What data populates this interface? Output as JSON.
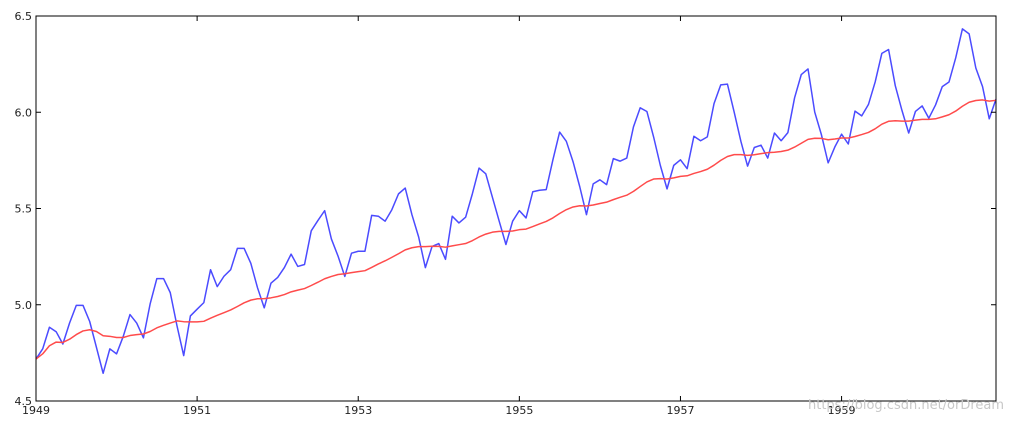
{
  "chart_data": {
    "type": "line",
    "title": "",
    "xlabel": "",
    "ylabel": "",
    "xlim": [
      1949,
      1960.917
    ],
    "ylim": [
      4.5,
      6.5
    ],
    "x_ticks": [
      1949,
      1951,
      1953,
      1955,
      1957,
      1959
    ],
    "y_ticks": [
      "4.5",
      "5.0",
      "5.5",
      "6.0",
      "6.5"
    ],
    "grid": false,
    "legend": "none",
    "x_start": 1949,
    "x_step": 0.0833333,
    "series": [
      {
        "color": "#4b4bff",
        "values": [
          4.718,
          4.771,
          4.883,
          4.86,
          4.796,
          4.905,
          4.997,
          4.997,
          4.913,
          4.779,
          4.644,
          4.771,
          4.745,
          4.836,
          4.949,
          4.905,
          4.828,
          5.004,
          5.136,
          5.136,
          5.063,
          4.891,
          4.736,
          4.942,
          4.977,
          5.011,
          5.182,
          5.094,
          5.148,
          5.182,
          5.293,
          5.293,
          5.215,
          5.088,
          4.984,
          5.112,
          5.142,
          5.193,
          5.263,
          5.199,
          5.209,
          5.384,
          5.438,
          5.489,
          5.342,
          5.252,
          5.147,
          5.268,
          5.278,
          5.278,
          5.464,
          5.46,
          5.434,
          5.493,
          5.576,
          5.606,
          5.468,
          5.352,
          5.193,
          5.303,
          5.318,
          5.236,
          5.46,
          5.425,
          5.455,
          5.576,
          5.71,
          5.68,
          5.557,
          5.434,
          5.313,
          5.434,
          5.489,
          5.451,
          5.587,
          5.595,
          5.598,
          5.753,
          5.897,
          5.849,
          5.743,
          5.613,
          5.468,
          5.628,
          5.649,
          5.624,
          5.759,
          5.746,
          5.762,
          5.924,
          6.023,
          6.004,
          5.872,
          5.724,
          5.602,
          5.724,
          5.753,
          5.707,
          5.875,
          5.852,
          5.872,
          6.045,
          6.142,
          6.146,
          6.001,
          5.849,
          5.72,
          5.817,
          5.829,
          5.762,
          5.892,
          5.852,
          5.894,
          6.075,
          6.196,
          6.225,
          6.001,
          5.883,
          5.737,
          5.82,
          5.886,
          5.835,
          6.006,
          5.981,
          6.04,
          6.157,
          6.306,
          6.326,
          6.138,
          6.009,
          5.892,
          6.004,
          6.033,
          5.969,
          6.038,
          6.133,
          6.157,
          6.282,
          6.433,
          6.407,
          6.23,
          6.133,
          5.966,
          6.068
        ]
      },
      {
        "color": "#ff4b4b",
        "values": [
          4.718,
          4.745,
          4.787,
          4.806,
          4.804,
          4.821,
          4.845,
          4.864,
          4.87,
          4.861,
          4.839,
          4.836,
          4.83,
          4.83,
          4.84,
          4.845,
          4.848,
          4.861,
          4.88,
          4.893,
          4.905,
          4.916,
          4.912,
          4.911,
          4.911,
          4.914,
          4.93,
          4.945,
          4.959,
          4.973,
          4.991,
          5.01,
          5.024,
          5.031,
          5.032,
          5.036,
          5.043,
          5.053,
          5.067,
          5.076,
          5.084,
          5.1,
          5.117,
          5.135,
          5.147,
          5.157,
          5.161,
          5.167,
          5.172,
          5.177,
          5.194,
          5.212,
          5.228,
          5.246,
          5.265,
          5.285,
          5.296,
          5.302,
          5.302,
          5.304,
          5.303,
          5.299,
          5.306,
          5.312,
          5.318,
          5.333,
          5.352,
          5.367,
          5.377,
          5.381,
          5.381,
          5.383,
          5.39,
          5.393,
          5.406,
          5.42,
          5.433,
          5.451,
          5.474,
          5.494,
          5.508,
          5.514,
          5.513,
          5.518,
          5.526,
          5.533,
          5.546,
          5.558,
          5.569,
          5.589,
          5.614,
          5.638,
          5.653,
          5.655,
          5.653,
          5.659,
          5.667,
          5.67,
          5.682,
          5.692,
          5.704,
          5.725,
          5.75,
          5.77,
          5.78,
          5.78,
          5.776,
          5.779,
          5.785,
          5.79,
          5.792,
          5.796,
          5.803,
          5.819,
          5.839,
          5.859,
          5.865,
          5.864,
          5.857,
          5.861,
          5.866,
          5.866,
          5.874,
          5.884,
          5.895,
          5.914,
          5.938,
          5.953,
          5.956,
          5.954,
          5.954,
          5.959,
          5.963,
          5.963,
          5.966,
          5.976,
          5.987,
          6.006,
          6.031,
          6.052,
          6.061,
          6.064,
          6.058,
          6.062
        ]
      }
    ]
  },
  "watermark": "https://blog.csdn.net/orDream"
}
